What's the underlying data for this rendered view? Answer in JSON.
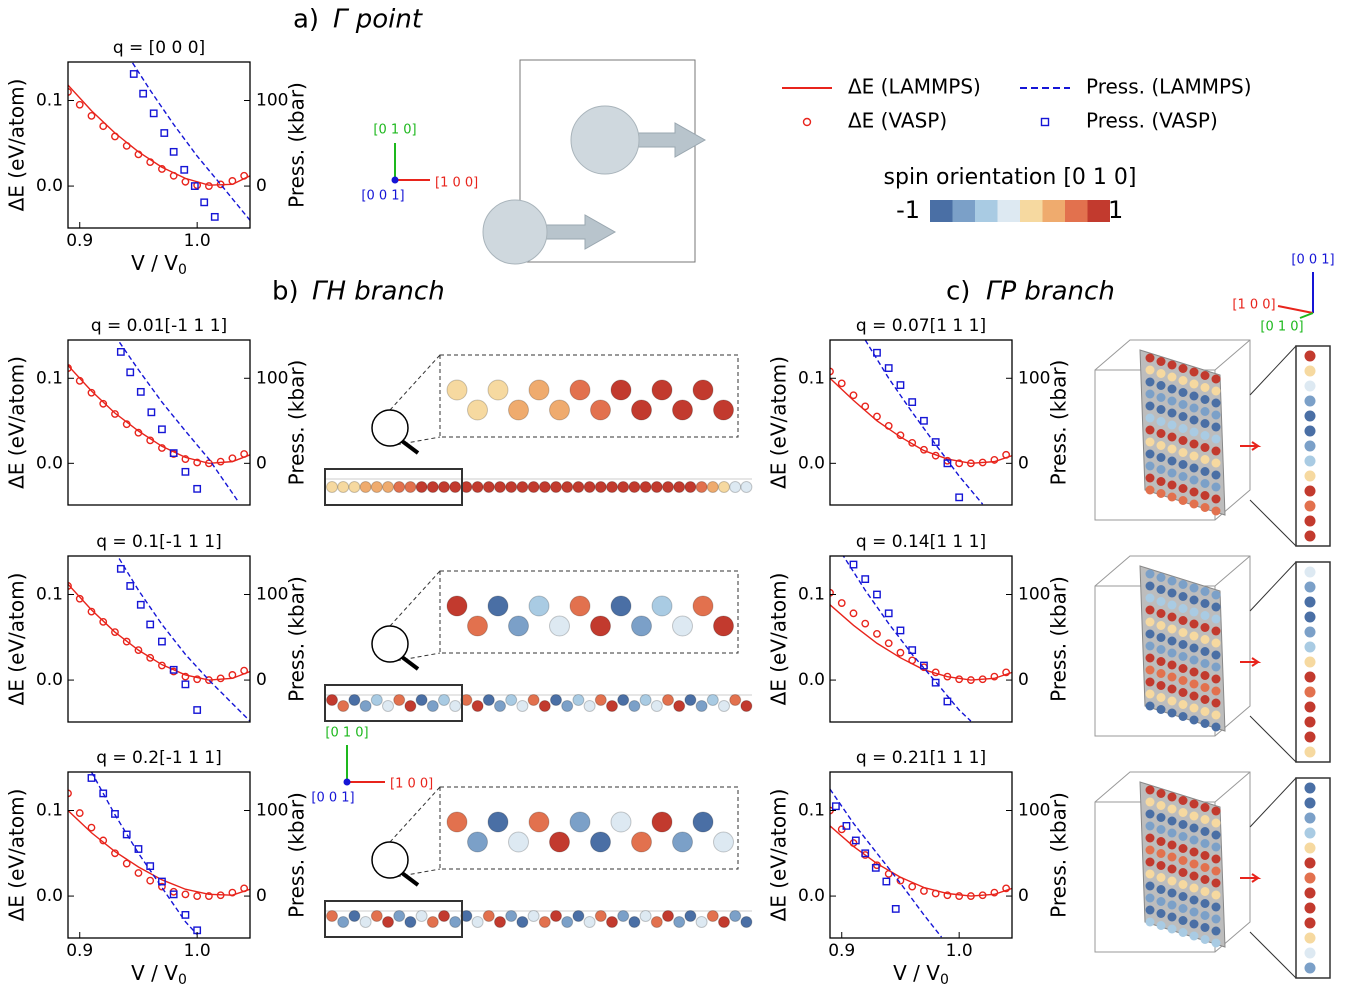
{
  "figure": {
    "panel_a": {
      "letter": "a)",
      "title": "Γ point"
    },
    "panel_b": {
      "letter": "b)",
      "title": "ΓH branch"
    },
    "panel_c": {
      "letter": "c)",
      "title": "ΓP branch"
    },
    "directions": {
      "x": "[1 0 0]",
      "y": "[0 1 0]",
      "z": "[0 0 1]"
    },
    "colorbar": {
      "title": "spin orientation [0 1 0]",
      "min_label": "-1",
      "max_label": "1",
      "colors": [
        "#4a6fa5",
        "#7ba0c8",
        "#a9cbe3",
        "#dde9f2",
        "#f6d9a0",
        "#efab6e",
        "#e2714e",
        "#c23a2e"
      ]
    }
  },
  "chart_data": [
    {
      "type": "line",
      "title": "q = [0 0 0]",
      "xlabel": "V / V",
      "xlabel_sub": "0",
      "ylabel": "ΔE (eV/atom)",
      "y2label": "Press. (kbar)",
      "xlim": [
        0.89,
        1.045
      ],
      "ylim": [
        -0.049,
        0.145
      ],
      "y2lim": [
        -49,
        145
      ],
      "xticks": [
        0.9,
        {
          "value": 1,
          "label": "1.0"
        }
      ],
      "yticks": [
        {
          "value": 0,
          "label": "0.0"
        },
        0.1
      ],
      "y2ticks": [
        0,
        100
      ],
      "series": [
        {
          "name": "ΔE (LAMMPS)",
          "color": "#e8241c",
          "style": "solid",
          "x": [
            0.89,
            0.91,
            0.93,
            0.95,
            0.97,
            0.99,
            1.01,
            1.03,
            1.045
          ],
          "values": [
            0.118,
            0.088,
            0.062,
            0.04,
            0.022,
            0.009,
            0.001,
            0.002,
            0.012
          ]
        },
        {
          "name": "ΔE (VASP)",
          "color": "#e8241c",
          "style": "circle",
          "x": [
            0.89,
            0.9,
            0.91,
            0.92,
            0.93,
            0.94,
            0.95,
            0.96,
            0.97,
            0.98,
            0.99,
            1.0,
            1.01,
            1.02,
            1.03,
            1.04
          ],
          "values": [
            0.11,
            0.095,
            0.082,
            0.07,
            0.058,
            0.047,
            0.037,
            0.028,
            0.02,
            0.012,
            0.005,
            0.001,
            0,
            0.002,
            0.006,
            0.012
          ]
        },
        {
          "name": "Press. (LAMMPS)",
          "color": "#1515d6",
          "style": "dashed",
          "axis": "y2",
          "x": [
            0.945,
            0.96,
            0.98,
            1.0,
            1.02,
            1.045
          ],
          "values": [
            144,
            112,
            72,
            35,
            2,
            -40
          ]
        },
        {
          "name": "Press. (VASP)",
          "color": "#1515d6",
          "style": "square",
          "axis": "y2",
          "x": [
            0.946,
            0.954,
            0.963,
            0.972,
            0.98,
            0.989,
            0.998,
            1.006,
            1.015
          ],
          "values": [
            131,
            108,
            85,
            62,
            40,
            19,
            0,
            -19,
            -36
          ]
        }
      ]
    },
    {
      "type": "line",
      "title": "q = 0.01[-1 1 1]",
      "ylabel": "ΔE (eV/atom)",
      "y2label": "Press. (kbar)",
      "xlim": [
        0.89,
        1.045
      ],
      "ylim": [
        -0.049,
        0.145
      ],
      "y2lim": [
        -49,
        145
      ],
      "yticks": [
        {
          "value": 0,
          "label": "0.0"
        },
        0.1
      ],
      "y2ticks": [
        0,
        100
      ],
      "series": [
        {
          "color": "#e8241c",
          "style": "solid",
          "x": [
            0.89,
            0.91,
            0.93,
            0.95,
            0.97,
            0.99,
            1.01,
            1.03,
            1.045
          ],
          "values": [
            0.115,
            0.085,
            0.059,
            0.038,
            0.02,
            0.007,
            0.0,
            0.002,
            0.01
          ]
        },
        {
          "color": "#e8241c",
          "style": "circle",
          "x": [
            0.89,
            0.9,
            0.91,
            0.92,
            0.93,
            0.94,
            0.95,
            0.96,
            0.97,
            0.98,
            0.99,
            1.0,
            1.01,
            1.02,
            1.03,
            1.04
          ],
          "values": [
            0.112,
            0.097,
            0.083,
            0.07,
            0.058,
            0.046,
            0.036,
            0.027,
            0.018,
            0.011,
            0.005,
            0.001,
            0,
            0.002,
            0.006,
            0.011
          ]
        },
        {
          "color": "#1515d6",
          "style": "dashed",
          "axis": "y2",
          "x": [
            0.93,
            0.95,
            0.97,
            0.99,
            1.01,
            1.035
          ],
          "values": [
            150,
            110,
            72,
            38,
            5,
            -45
          ]
        },
        {
          "color": "#1515d6",
          "style": "square",
          "axis": "y2",
          "x": [
            0.935,
            0.943,
            0.952,
            0.961,
            0.97,
            0.98,
            0.99,
            1.0
          ],
          "values": [
            131,
            107,
            84,
            60,
            40,
            12,
            -10,
            -30
          ]
        }
      ]
    },
    {
      "type": "line",
      "title": "q = 0.1[-1 1 1]",
      "ylabel": "ΔE (eV/atom)",
      "y2label": "Press. (kbar)",
      "xlim": [
        0.89,
        1.045
      ],
      "ylim": [
        -0.049,
        0.145
      ],
      "y2lim": [
        -49,
        145
      ],
      "yticks": [
        {
          "value": 0,
          "label": "0.0"
        },
        0.1
      ],
      "y2ticks": [
        0,
        100
      ],
      "series": [
        {
          "color": "#e8241c",
          "style": "solid",
          "x": [
            0.89,
            0.91,
            0.93,
            0.95,
            0.97,
            0.99,
            1.01,
            1.03,
            1.045
          ],
          "values": [
            0.112,
            0.082,
            0.056,
            0.035,
            0.018,
            0.006,
            0.0,
            0.002,
            0.01
          ]
        },
        {
          "color": "#e8241c",
          "style": "circle",
          "x": [
            0.89,
            0.9,
            0.91,
            0.92,
            0.93,
            0.94,
            0.95,
            0.96,
            0.97,
            0.98,
            0.99,
            1.0,
            1.01,
            1.02,
            1.03,
            1.04
          ],
          "values": [
            0.11,
            0.095,
            0.08,
            0.068,
            0.056,
            0.045,
            0.035,
            0.026,
            0.017,
            0.01,
            0.004,
            0.001,
            0,
            0.002,
            0.006,
            0.011
          ]
        },
        {
          "color": "#1515d6",
          "style": "dashed",
          "axis": "y2",
          "x": [
            0.93,
            0.95,
            0.97,
            0.99,
            1.01,
            1.045
          ],
          "values": [
            150,
            105,
            65,
            30,
            0,
            -48
          ]
        },
        {
          "color": "#1515d6",
          "style": "square",
          "axis": "y2",
          "x": [
            0.935,
            0.943,
            0.952,
            0.96,
            0.97,
            0.98,
            0.99,
            1.0
          ],
          "values": [
            130,
            110,
            88,
            65,
            45,
            12,
            -5,
            -35
          ]
        }
      ]
    },
    {
      "type": "line",
      "title": "q = 0.2[-1 1 1]",
      "xlabel": "V / V",
      "xlabel_sub": "0",
      "ylabel": "ΔE (eV/atom)",
      "y2label": "Press. (kbar)",
      "xlim": [
        0.89,
        1.045
      ],
      "ylim": [
        -0.049,
        0.145
      ],
      "y2lim": [
        -49,
        145
      ],
      "xticks": [
        0.9,
        {
          "value": 1,
          "label": "1.0"
        }
      ],
      "yticks": [
        {
          "value": 0,
          "label": "0.0"
        },
        0.1
      ],
      "y2ticks": [
        0,
        100
      ],
      "series": [
        {
          "color": "#e8241c",
          "style": "solid",
          "x": [
            0.89,
            0.91,
            0.93,
            0.95,
            0.97,
            0.99,
            1.01,
            1.03,
            1.045
          ],
          "values": [
            0.1,
            0.074,
            0.052,
            0.034,
            0.019,
            0.008,
            0.002,
            0.001,
            0.008
          ]
        },
        {
          "color": "#e8241c",
          "style": "circle",
          "x": [
            0.89,
            0.9,
            0.91,
            0.92,
            0.93,
            0.94,
            0.95,
            0.96,
            0.97,
            0.98,
            0.99,
            1.0,
            1.01,
            1.02,
            1.03,
            1.04
          ],
          "values": [
            0.12,
            0.097,
            0.08,
            0.065,
            0.05,
            0.038,
            0.027,
            0.018,
            0.011,
            0.005,
            0.002,
            0,
            0,
            0.001,
            0.004,
            0.009
          ]
        },
        {
          "color": "#1515d6",
          "style": "dashed",
          "axis": "y2",
          "x": [
            0.91,
            0.93,
            0.95,
            0.97,
            0.99,
            1.0
          ],
          "values": [
            145,
            95,
            50,
            10,
            -30,
            -45
          ]
        },
        {
          "color": "#1515d6",
          "style": "square",
          "axis": "y2",
          "x": [
            0.91,
            0.92,
            0.93,
            0.94,
            0.95,
            0.96,
            0.97,
            0.98,
            0.99,
            1.0
          ],
          "values": [
            138,
            120,
            96,
            72,
            55,
            35,
            17,
            2,
            -22,
            -40
          ]
        }
      ]
    },
    {
      "type": "line",
      "title": "q = 0.07[1 1 1]",
      "ylabel": "ΔE (eV/atom)",
      "y2label": "Press. (kbar)",
      "xlim": [
        0.89,
        1.045
      ],
      "ylim": [
        -0.049,
        0.145
      ],
      "y2lim": [
        -49,
        145
      ],
      "yticks": [
        {
          "value": 0,
          "label": "0.0"
        },
        0.1
      ],
      "y2ticks": [
        0,
        100
      ],
      "series": [
        {
          "color": "#e8241c",
          "style": "solid",
          "x": [
            0.89,
            0.91,
            0.93,
            0.95,
            0.97,
            0.99,
            1.01,
            1.03,
            1.045
          ],
          "values": [
            0.1,
            0.074,
            0.05,
            0.031,
            0.015,
            0.005,
            0.0,
            0.002,
            0.009
          ]
        },
        {
          "color": "#e8241c",
          "style": "circle",
          "x": [
            0.89,
            0.9,
            0.91,
            0.92,
            0.93,
            0.94,
            0.95,
            0.96,
            0.97,
            0.98,
            0.99,
            1.0,
            1.01,
            1.02,
            1.03,
            1.04
          ],
          "values": [
            0.108,
            0.094,
            0.08,
            0.067,
            0.055,
            0.044,
            0.033,
            0.024,
            0.016,
            0.009,
            0.003,
            0,
            0,
            0.001,
            0.004,
            0.01
          ]
        },
        {
          "color": "#1515d6",
          "style": "dashed",
          "axis": "y2",
          "x": [
            0.92,
            0.94,
            0.96,
            0.98,
            1.0,
            1.02
          ],
          "values": [
            145,
            100,
            60,
            22,
            -15,
            -48
          ]
        },
        {
          "color": "#1515d6",
          "style": "square",
          "axis": "y2",
          "x": [
            0.93,
            0.94,
            0.95,
            0.96,
            0.97,
            0.98,
            0.99,
            1.0
          ],
          "values": [
            130,
            112,
            92,
            72,
            50,
            25,
            0,
            -40
          ]
        }
      ]
    },
    {
      "type": "line",
      "title": "q = 0.14[1 1 1]",
      "ylabel": "ΔE (eV/atom)",
      "y2label": "Press. (kbar)",
      "xlim": [
        0.89,
        1.045
      ],
      "ylim": [
        -0.049,
        0.145
      ],
      "y2lim": [
        -49,
        145
      ],
      "yticks": [
        {
          "value": 0,
          "label": "0.0"
        },
        0.1
      ],
      "y2ticks": [
        0,
        100
      ],
      "series": [
        {
          "color": "#e8241c",
          "style": "solid",
          "x": [
            0.89,
            0.91,
            0.93,
            0.95,
            0.97,
            0.99,
            1.01,
            1.03,
            1.045
          ],
          "values": [
            0.088,
            0.064,
            0.043,
            0.026,
            0.012,
            0.004,
            0.0,
            0.002,
            0.009
          ]
        },
        {
          "color": "#e8241c",
          "style": "circle",
          "x": [
            0.89,
            0.9,
            0.91,
            0.92,
            0.93,
            0.94,
            0.95,
            0.96,
            0.97,
            0.98,
            0.99,
            1.0,
            1.01,
            1.02,
            1.03,
            1.04
          ],
          "values": [
            0.102,
            0.09,
            0.078,
            0.066,
            0.054,
            0.043,
            0.032,
            0.023,
            0.015,
            0.009,
            0.004,
            0.001,
            0,
            0.001,
            0.004,
            0.009
          ]
        },
        {
          "color": "#1515d6",
          "style": "dashed",
          "axis": "y2",
          "x": [
            0.9,
            0.92,
            0.94,
            0.96,
            0.98,
            1.0,
            1.01
          ],
          "values": [
            148,
            105,
            66,
            30,
            -2,
            -35,
            -48
          ]
        },
        {
          "color": "#1515d6",
          "style": "square",
          "axis": "y2",
          "x": [
            0.91,
            0.92,
            0.93,
            0.94,
            0.95,
            0.96,
            0.97,
            0.98,
            0.99
          ],
          "values": [
            135,
            118,
            100,
            78,
            58,
            35,
            17,
            -3,
            -25
          ]
        }
      ]
    },
    {
      "type": "line",
      "title": "q = 0.21[1 1 1]",
      "xlabel": "V / V",
      "xlabel_sub": "0",
      "ylabel": "ΔE (eV/atom)",
      "y2label": "Press. (kbar)",
      "xlim": [
        0.89,
        1.045
      ],
      "ylim": [
        -0.049,
        0.145
      ],
      "y2lim": [
        -49,
        145
      ],
      "xticks": [
        0.9,
        {
          "value": 1,
          "label": "1.0"
        }
      ],
      "yticks": [
        {
          "value": 0,
          "label": "0.0"
        },
        0.1
      ],
      "y2ticks": [
        0,
        100
      ],
      "series": [
        {
          "color": "#e8241c",
          "style": "solid",
          "x": [
            0.89,
            0.91,
            0.93,
            0.95,
            0.97,
            0.99,
            1.01,
            1.03,
            1.045
          ],
          "values": [
            0.082,
            0.058,
            0.038,
            0.022,
            0.01,
            0.003,
            0.0,
            0.002,
            0.009
          ]
        },
        {
          "color": "#e8241c",
          "style": "circle",
          "x": [
            0.89,
            0.9,
            0.91,
            0.92,
            0.93,
            0.94,
            0.95,
            0.96,
            0.97,
            0.98,
            0.99,
            1.0,
            1.01,
            1.02,
            1.03,
            1.04
          ],
          "values": [
            0.1,
            0.078,
            0.062,
            0.048,
            0.036,
            0.026,
            0.018,
            0.011,
            0.006,
            0.003,
            0.001,
            0,
            0,
            0.001,
            0.004,
            0.009
          ]
        },
        {
          "color": "#1515d6",
          "style": "dashed",
          "axis": "y2",
          "x": [
            0.89,
            0.91,
            0.93,
            0.95,
            0.97,
            0.985
          ],
          "values": [
            125,
            85,
            50,
            15,
            -22,
            -48
          ]
        },
        {
          "color": "#1515d6",
          "style": "square",
          "axis": "y2",
          "x": [
            0.895,
            0.904,
            0.912,
            0.92,
            0.929,
            0.938,
            0.946
          ],
          "values": [
            105,
            82,
            65,
            50,
            33,
            17,
            -15
          ]
        }
      ]
    }
  ]
}
